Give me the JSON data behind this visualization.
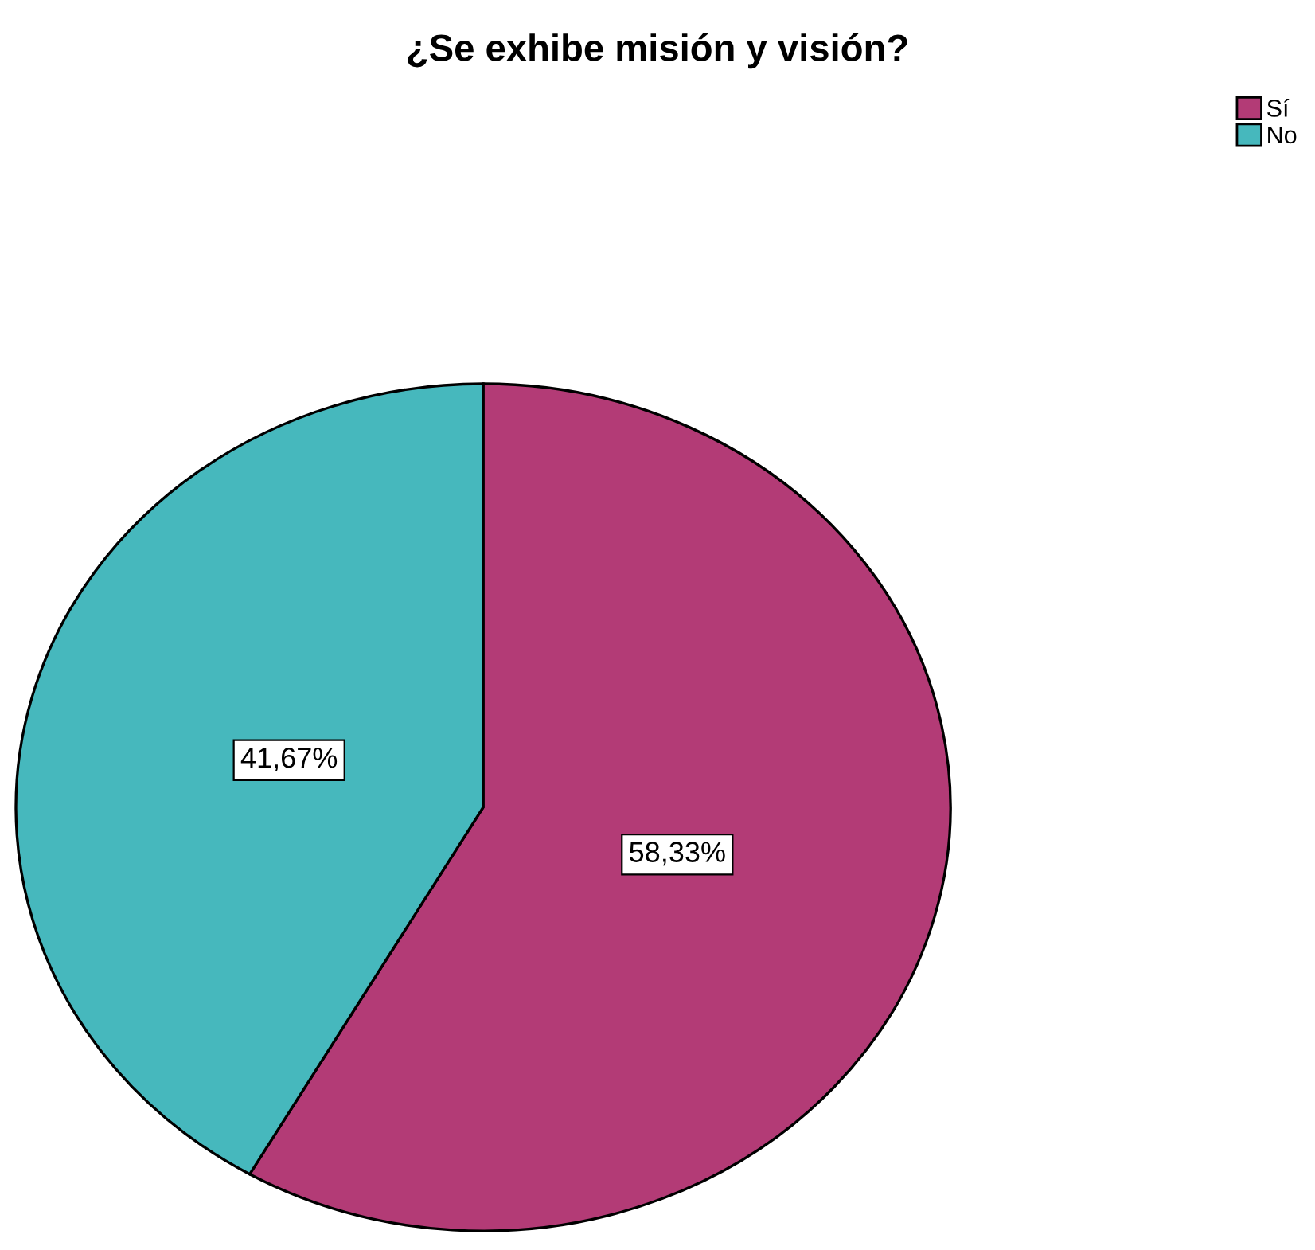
{
  "chart_data": {
    "type": "pie",
    "title": "¿Se exhibe misión y visión?",
    "categories": [
      "Sí",
      "No"
    ],
    "values": [
      58.33,
      41.67
    ],
    "colors": [
      "#b33b76",
      "#46b8bd"
    ],
    "value_labels": [
      "58,33%",
      "41,67%"
    ],
    "legend": "top right"
  }
}
